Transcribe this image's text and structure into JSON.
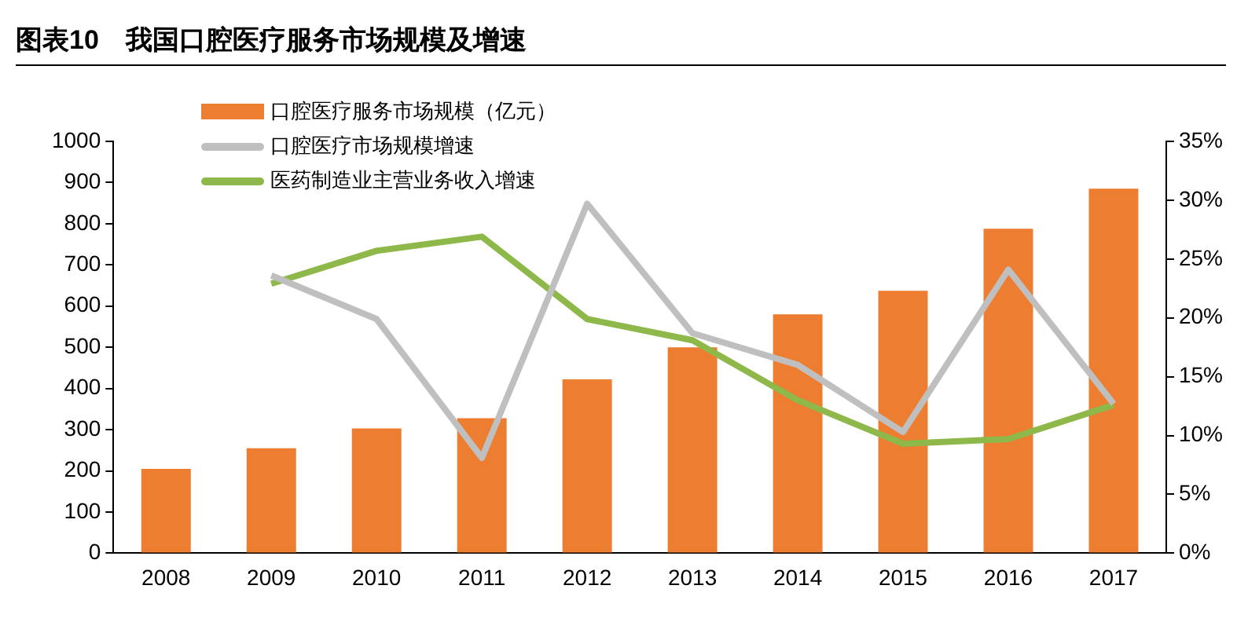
{
  "chart_data": {
    "type": "bar",
    "title": "图表10　我国口腔医疗服务市场规模及增速",
    "categories": [
      "2008",
      "2009",
      "2010",
      "2011",
      "2012",
      "2013",
      "2014",
      "2015",
      "2016",
      "2017"
    ],
    "series": [
      {
        "name": "口腔医疗服务市场规模（亿元）",
        "color": "#ed7d31",
        "values": [
          205,
          255,
          303,
          328,
          422,
          500,
          580,
          637,
          788,
          885
        ]
      },
      {
        "name": "口腔医疗市场规模增速",
        "type": "line",
        "axis": "y2",
        "color": "#bfbfbf",
        "values": [
          null,
          23.6,
          19.9,
          8.1,
          29.7,
          18.7,
          16.0,
          10.3,
          24.1,
          12.7
        ]
      },
      {
        "name": "医药制造业主营业务收入增速",
        "type": "line",
        "axis": "y2",
        "color": "#8fb84a",
        "values": [
          null,
          22.9,
          25.7,
          26.9,
          19.9,
          18.1,
          13.0,
          9.3,
          9.7,
          12.6
        ]
      }
    ],
    "ylim": [
      0,
      1000
    ],
    "yticks": [
      0,
      100,
      200,
      300,
      400,
      500,
      600,
      700,
      800,
      900,
      1000
    ],
    "y2lim": [
      0,
      35
    ],
    "y2ticks": [
      {
        "value": 0,
        "label": "0%"
      },
      {
        "value": 5,
        "label": "5%"
      },
      {
        "value": 10,
        "label": "10%"
      },
      {
        "value": 15,
        "label": "15%"
      },
      {
        "value": 20,
        "label": "20%"
      },
      {
        "value": 25,
        "label": "25%"
      },
      {
        "value": 30,
        "label": "30%"
      },
      {
        "value": 35,
        "label": "35%"
      }
    ],
    "grid": false,
    "legend": "top left",
    "marker": "none"
  }
}
